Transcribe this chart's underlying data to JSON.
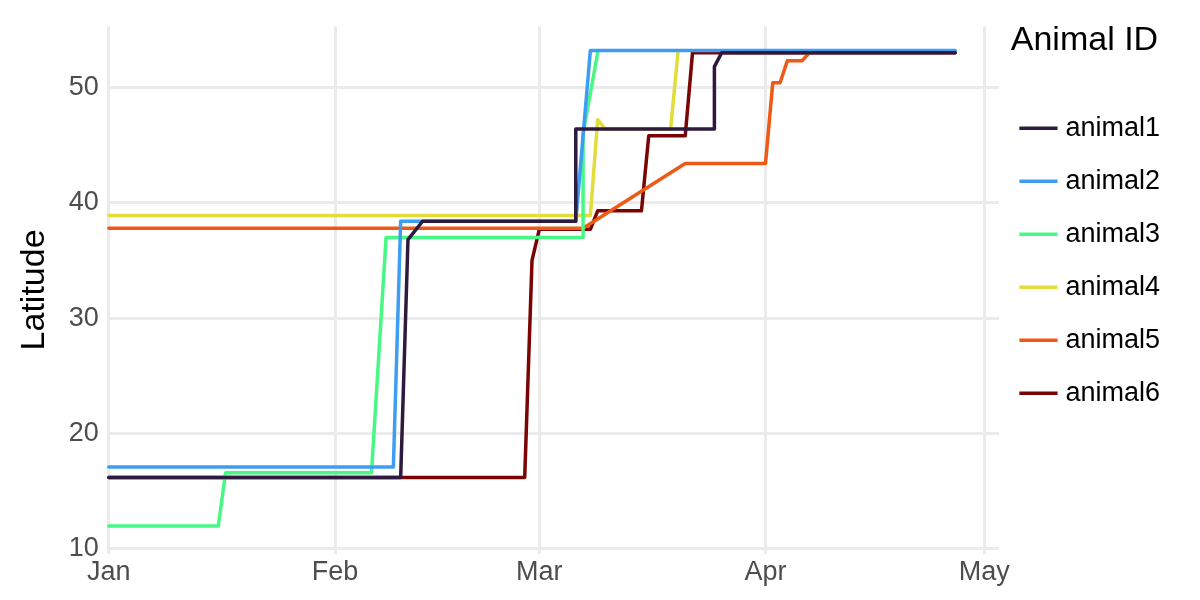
{
  "chart_data": {
    "type": "line",
    "ylabel": "Latitude",
    "legend_title": "Animal ID",
    "legend": "right",
    "grid": true,
    "marker": "none",
    "line_style": "solid",
    "xlim": [
      "--01-01",
      "--05-03"
    ],
    "xticks": [
      {
        "value": "--01-01",
        "label": "Jan"
      },
      {
        "value": "--02-01",
        "label": "Feb"
      },
      {
        "value": "--03-01",
        "label": "Mar"
      },
      {
        "value": "--04-01",
        "label": "Apr"
      },
      {
        "value": "--05-01",
        "label": "May"
      }
    ],
    "ylim": [
      9.6,
      55.3
    ],
    "yticks": [
      10,
      20,
      30,
      40,
      50
    ],
    "series": [
      {
        "name": "animal1",
        "color": "#2d1a3e",
        "x": [
          "--01-01",
          "--02-10",
          "--02-11",
          "--02-13",
          "--03-06",
          "--03-06",
          "--03-25",
          "--03-25",
          "--03-26",
          "--04-27"
        ],
        "values": [
          16.2,
          16.2,
          36.8,
          38.4,
          38.4,
          46.4,
          46.4,
          51.8,
          53,
          53
        ]
      },
      {
        "name": "animal2",
        "color": "#3d9df3",
        "x": [
          "--01-01",
          "--02-09",
          "--02-10",
          "--03-06",
          "--03-08",
          "--04-27"
        ],
        "values": [
          17.1,
          17.1,
          38.4,
          38.4,
          53.2,
          53.2
        ]
      },
      {
        "name": "animal3",
        "color": "#46f884",
        "x": [
          "--01-01",
          "--01-16",
          "--01-17",
          "--02-06",
          "--02-08",
          "--03-07",
          "--03-07",
          "--03-09"
        ],
        "values": [
          12,
          12,
          16.6,
          16.6,
          37,
          37,
          46,
          53
        ]
      },
      {
        "name": "animal4",
        "color": "#e2dd3a",
        "x": [
          "--01-01",
          "--03-08",
          "--03-09",
          "--03-10",
          "--03-19",
          "--03-20"
        ],
        "values": [
          38.9,
          38.9,
          47.2,
          46.4,
          46.4,
          53
        ]
      },
      {
        "name": "animal5",
        "color": "#ee5a16",
        "x": [
          "--01-01",
          "--03-07",
          "--03-21",
          "--04-01",
          "--04-02",
          "--04-03",
          "--04-04",
          "--04-06",
          "--04-07"
        ],
        "values": [
          37.8,
          37.8,
          43.4,
          43.4,
          50.4,
          50.4,
          52.3,
          52.3,
          53
        ]
      },
      {
        "name": "animal6",
        "color": "#7a0403",
        "x": [
          "--01-01",
          "--02-27",
          "--02-28",
          "--03-01",
          "--03-08",
          "--03-09",
          "--03-15",
          "--03-16",
          "--03-21",
          "--03-22",
          "--04-27"
        ],
        "values": [
          16.2,
          16.2,
          35,
          37.7,
          37.7,
          39.3,
          39.3,
          45.8,
          45.8,
          53,
          53
        ]
      }
    ]
  }
}
